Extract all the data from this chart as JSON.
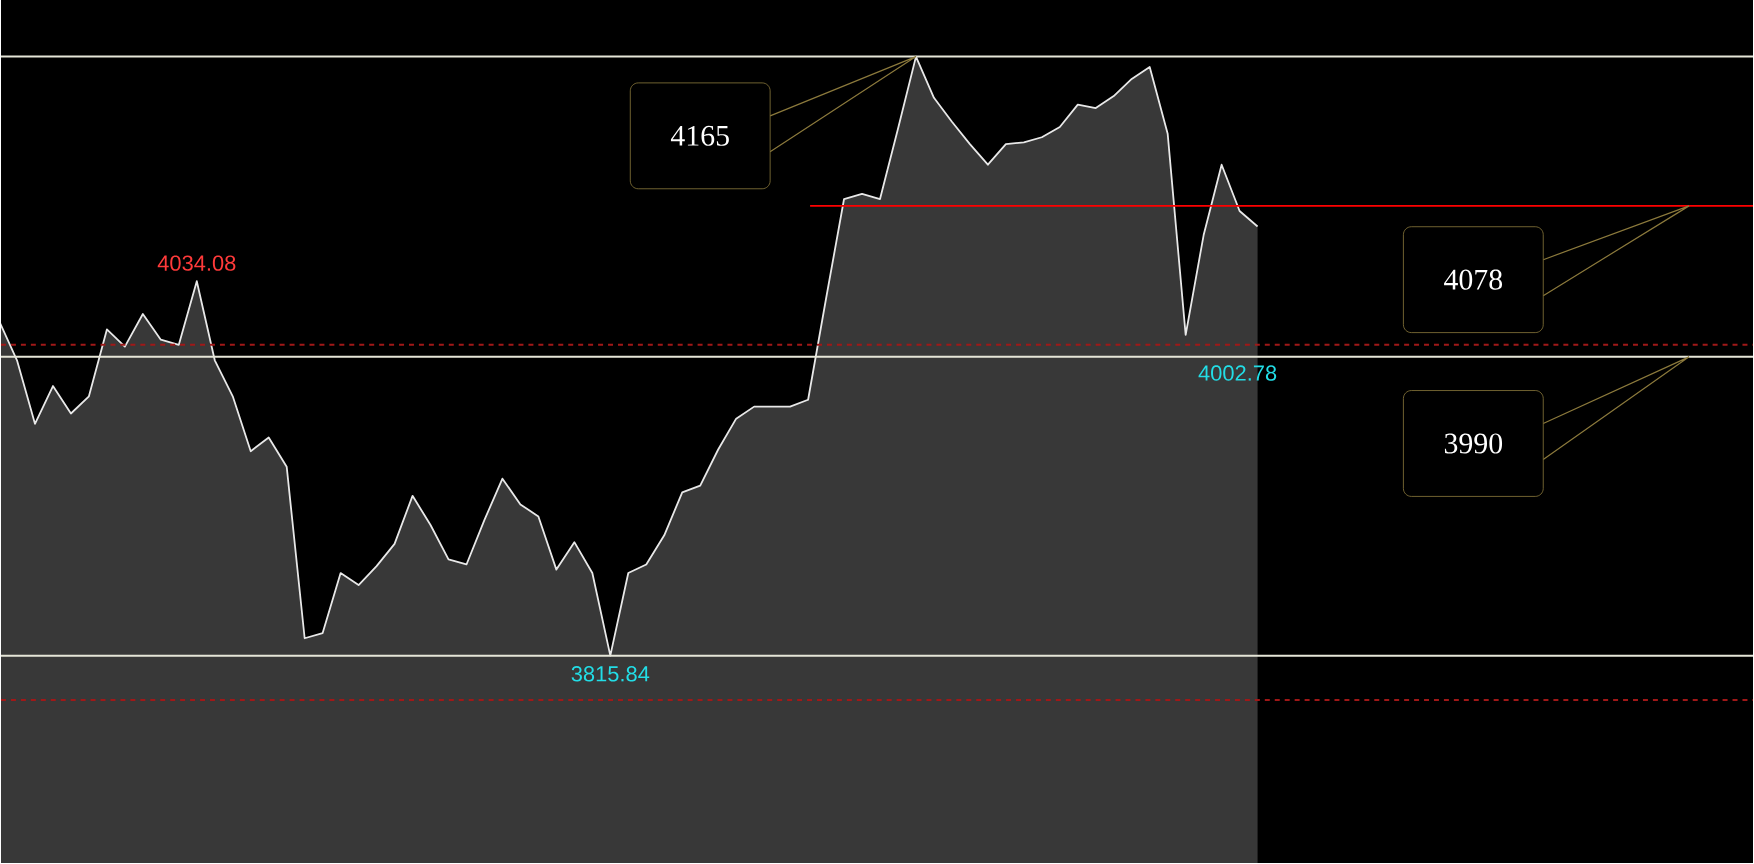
{
  "chart_data": {
    "type": "area",
    "color": "#383838",
    "categories": [
      null,
      null,
      null,
      null,
      null,
      null,
      null,
      null,
      null,
      null,
      null,
      null,
      null,
      null,
      null,
      null,
      null,
      null,
      null,
      null,
      null,
      null,
      null,
      null,
      null,
      null,
      null,
      null,
      null,
      null,
      null,
      null,
      null,
      null,
      null,
      null,
      null,
      null,
      null,
      null,
      null,
      null,
      null,
      null,
      null,
      null,
      null,
      null,
      null,
      null,
      null,
      null,
      null,
      null,
      null,
      null,
      null,
      null,
      null,
      null,
      null,
      null,
      null,
      null,
      null,
      null,
      null,
      null,
      null,
      null,
      null,
      null,
      null,
      null,
      null,
      null,
      null,
      null,
      null,
      null,
      null,
      null,
      null,
      null,
      null,
      null,
      null,
      null,
      null,
      null,
      null,
      null,
      null,
      null,
      null,
      null,
      null,
      null
    ],
    "values": [
      4011,
      3988,
      3951,
      3973,
      3957,
      3967,
      4006,
      3996,
      4015,
      4000,
      3997,
      4034.08,
      3988,
      3967,
      3935,
      3943,
      3926,
      3826,
      3829,
      3864,
      3857,
      3868,
      3881,
      3909,
      3892,
      3872,
      3869,
      3895,
      3919,
      3904,
      3897,
      3866,
      3882,
      3864,
      3815.84,
      3864,
      3869,
      3886,
      3911,
      3915,
      3936,
      3954,
      3961,
      3961,
      3961,
      3965,
      4024,
      4082,
      4085,
      4082,
      4123,
      4165,
      4141,
      4127,
      4114,
      4102,
      4114,
      4115,
      4118,
      4124,
      4137,
      4135,
      4142,
      4152,
      4159,
      4120,
      4002.78,
      4061,
      4102,
      4075,
      4066,
      null,
      null,
      null,
      null,
      null,
      null,
      null,
      null,
      null,
      null,
      null,
      null,
      null,
      null,
      null,
      null,
      null,
      null,
      null,
      null,
      null,
      null,
      null,
      null,
      null,
      null,
      null
    ],
    "value_labels": [
      null,
      null,
      null,
      null,
      null,
      null,
      null,
      null,
      null,
      null,
      null,
      "4034.08",
      null,
      null,
      null,
      null,
      null,
      null,
      null,
      null,
      null,
      null,
      null,
      null,
      null,
      null,
      null,
      null,
      null,
      null,
      null,
      null,
      null,
      null,
      "3815.84",
      null,
      null,
      null,
      null,
      null,
      null,
      null,
      null,
      null,
      null,
      null,
      null,
      null,
      null,
      null,
      null,
      null,
      null,
      null,
      null,
      null,
      null,
      null,
      null,
      null,
      null,
      null,
      null,
      null,
      null,
      null,
      "4002.78",
      null,
      null,
      null,
      null,
      null,
      null,
      null,
      null,
      null,
      null,
      null,
      null,
      null,
      null,
      null,
      null,
      null,
      null,
      null,
      null,
      null,
      null,
      null,
      null,
      null,
      null,
      null,
      null,
      null,
      null,
      null
    ],
    "ylim": [
      3695,
      4198
    ],
    "ref_lines": [
      {
        "axis": "y",
        "value": 4165,
        "label": "4165",
        "color": "#e6e6d8",
        "line_style": "solid"
      },
      {
        "axis": "y",
        "value": 3990,
        "label": "3990",
        "color": "#e6e6d8",
        "line_style": "solid"
      },
      {
        "axis": "y",
        "value": 3815.84,
        "color": "#e6e6d8",
        "line_style": "solid"
      },
      {
        "axis": "y",
        "value": 4078,
        "label": "4078",
        "color": "#ff0000",
        "line_style": "solid"
      },
      {
        "axis": "y",
        "value": 3997,
        "color": "#a01818",
        "line_style": "dashed"
      },
      {
        "axis": "y",
        "value": 3790,
        "color": "#a01818",
        "line_style": "dashed"
      }
    ]
  }
}
